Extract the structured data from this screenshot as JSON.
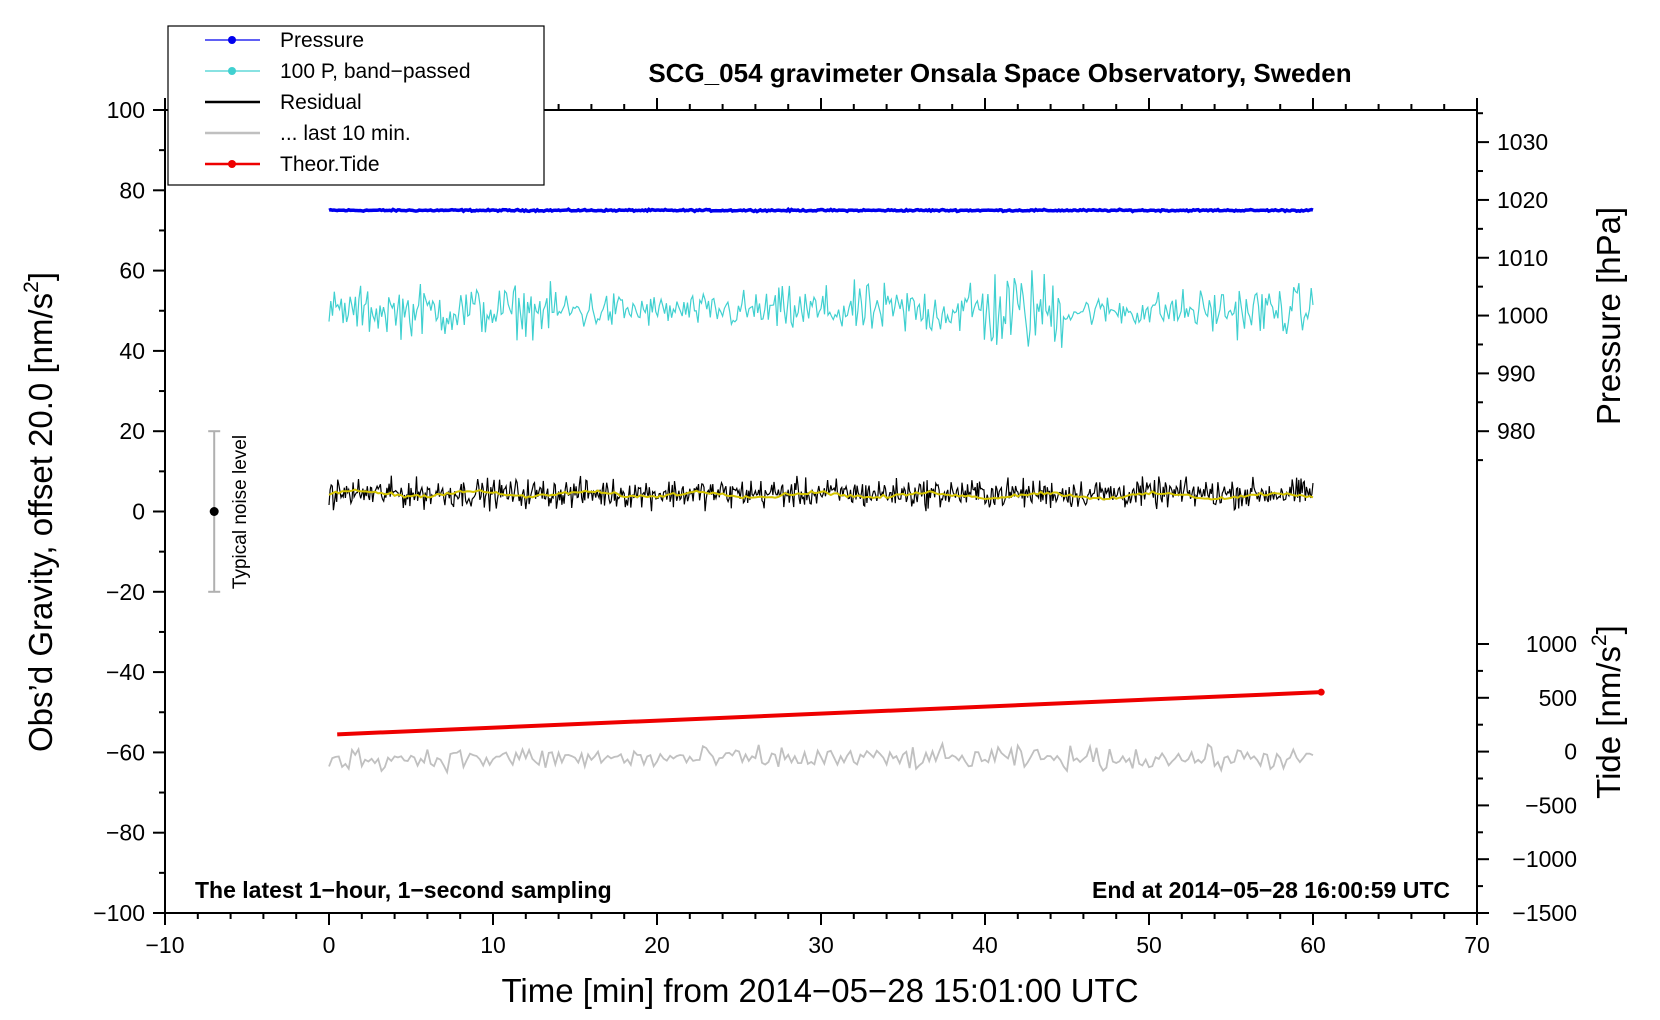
{
  "chart_data": {
    "type": "line",
    "title": "SCG_054 gravimeter Onsala Space Observatory, Sweden",
    "xlabel": "Time [min] from 2014−05−28 15:01:00 UTC",
    "ylabel": "Obs’d Gravity, offset 20.0 [nm/s²]",
    "ylabel_main": "Obs’d Gravity, offset 20.0 [nm/s",
    "ylabel_sup": "2",
    "ylabel_close": "]",
    "xlim": [
      -10,
      70
    ],
    "ylim": [
      -100,
      100
    ],
    "x_ticks": [
      -10,
      0,
      10,
      20,
      30,
      40,
      50,
      60,
      70
    ],
    "x_tick_labels": [
      "−10",
      "0",
      "10",
      "20",
      "30",
      "40",
      "50",
      "60",
      "70"
    ],
    "y_ticks": [
      -100,
      -80,
      -60,
      -40,
      -20,
      0,
      20,
      40,
      60,
      80,
      100
    ],
    "y_tick_labels": [
      "−100",
      "−80",
      "−60",
      "−40",
      "−20",
      "0",
      "20",
      "40",
      "60",
      "80",
      "100"
    ],
    "right_axes": [
      {
        "name": "pressure",
        "label": "Pressure [hPa]",
        "ticks": [
          980,
          990,
          1000,
          1010,
          1020,
          1030
        ],
        "tick_labels": [
          "980",
          "990",
          "1000",
          "1010",
          "1020",
          "1030"
        ],
        "gravity_at_980": 20.0,
        "gravity_at_1030": 92.0
      },
      {
        "name": "tide",
        "label_main": "Tide [nm/s",
        "label_sup": "2",
        "label_close": "]",
        "ticks": [
          -1500,
          -1000,
          -500,
          0,
          500,
          1000
        ],
        "tick_labels": [
          "−1500",
          "−1000",
          "−500",
          "0",
          "500",
          "1000"
        ],
        "gravity_at_minus1500": -100.0,
        "gravity_at_1000": -33.0
      }
    ],
    "series": [
      {
        "name": "Pressure",
        "color": "#0000ee",
        "style": "points",
        "level": 75.0,
        "noise": 0.5,
        "x_range": [
          0,
          60
        ]
      },
      {
        "name": "100 P, band−passed",
        "color": "#40d0d0",
        "style": "line",
        "level": 50.0,
        "noise": 4.5,
        "x_range": [
          0,
          60
        ]
      },
      {
        "name": "Residual",
        "color": "#000000",
        "style": "line",
        "level": 4.5,
        "noise": 2.5,
        "x_range": [
          0,
          60
        ]
      },
      {
        "name": "... last 10 min.",
        "color": "#c0c0c0",
        "style": "line",
        "level": -61.5,
        "noise": 2.0,
        "x_range": [
          0,
          60
        ]
      },
      {
        "name": "Theor.Tide",
        "color": "#ee0000",
        "style": "points",
        "start": [
          0.5,
          -55.5
        ],
        "end": [
          60.5,
          -45.0
        ]
      },
      {
        "name": "smoothed residual",
        "color": "#d4c400",
        "style": "line",
        "level": 4.5,
        "noise": 0.8,
        "x_range": [
          0,
          60
        ]
      }
    ],
    "legend": [
      "Pressure",
      "100 P, band−passed",
      "Residual",
      "... last 10 min.",
      "Theor.Tide"
    ],
    "legend_colors": [
      "#0000ee",
      "#40d0d0",
      "#000000",
      "#c0c0c0",
      "#ee0000"
    ],
    "legend_markers": [
      true,
      true,
      false,
      false,
      true
    ],
    "legend_position": "top-left",
    "noise_bar": {
      "label": "Typical noise level",
      "x": -7,
      "center": 0,
      "low": -20,
      "high": 20
    },
    "annotations": {
      "bottom_left": "The latest 1−hour, 1−second sampling",
      "bottom_right": "End at 2014−05−28 16:00:59 UTC"
    }
  }
}
